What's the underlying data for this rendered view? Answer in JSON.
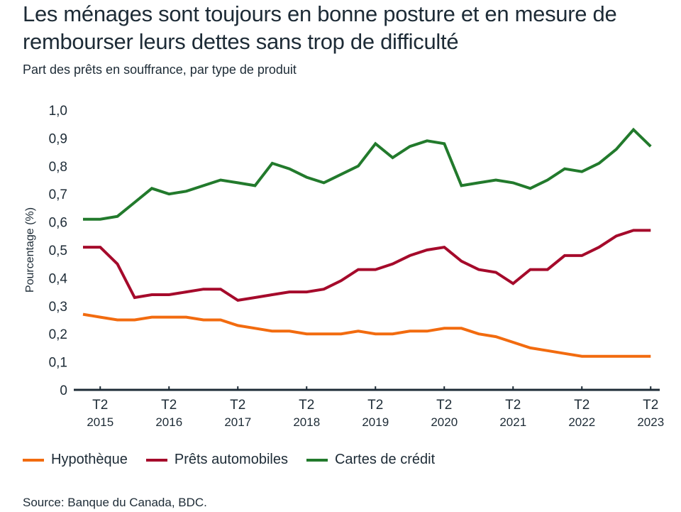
{
  "title": "Les ménages sont toujours en bonne posture et en mesure de rembourser leurs dettes sans trop de difficulté",
  "subtitle": "Part des prêts en souffrance, par type de produit",
  "source": "Source: Banque du Canada, BDC.",
  "chart_data": {
    "type": "line",
    "title": "Les ménages sont toujours en bonne posture et en mesure de rembourser leurs dettes sans trop de difficulté",
    "subtitle": "Part des prêts en souffrance, par type de produit",
    "xlabel": "",
    "ylabel": "Pourcentage (%)",
    "ylim": [
      0,
      1.0
    ],
    "yticks": [
      0,
      0.1,
      0.2,
      0.3,
      0.4,
      0.5,
      0.6,
      0.7,
      0.8,
      0.9,
      1.0
    ],
    "ytick_labels": [
      "0",
      "0,1",
      "0,2",
      "0,3",
      "0,4",
      "0,5",
      "0,6",
      "0,7",
      "0,8",
      "0,9",
      "1,0"
    ],
    "grid": false,
    "legend_position": "bottom-left",
    "x": [
      "T1 2015",
      "T2 2015",
      "T3 2015",
      "T4 2015",
      "T1 2016",
      "T2 2016",
      "T3 2016",
      "T4 2016",
      "T1 2017",
      "T2 2017",
      "T3 2017",
      "T4 2017",
      "T1 2018",
      "T2 2018",
      "T3 2018",
      "T4 2018",
      "T1 2019",
      "T2 2019",
      "T3 2019",
      "T4 2019",
      "T1 2020",
      "T2 2020",
      "T3 2020",
      "T4 2020",
      "T1 2021",
      "T2 2021",
      "T3 2021",
      "T4 2021",
      "T1 2022",
      "T2 2022",
      "T3 2022",
      "T4 2022",
      "T1 2023",
      "T2 2023"
    ],
    "xtick_labels": [
      {
        "at": "T2 2015",
        "quarter": "T2",
        "year": "2015"
      },
      {
        "at": "T2 2016",
        "quarter": "T2",
        "year": "2016"
      },
      {
        "at": "T2 2017",
        "quarter": "T2",
        "year": "2017"
      },
      {
        "at": "T2 2018",
        "quarter": "T2",
        "year": "2018"
      },
      {
        "at": "T2 2019",
        "quarter": "T2",
        "year": "2019"
      },
      {
        "at": "T2 2020",
        "quarter": "T2",
        "year": "2020"
      },
      {
        "at": "T2 2021",
        "quarter": "T2",
        "year": "2021"
      },
      {
        "at": "T2 2022",
        "quarter": "T2",
        "year": "2022"
      },
      {
        "at": "T2 2023",
        "quarter": "T2",
        "year": "2023"
      }
    ],
    "series": [
      {
        "name": "Hypothèque",
        "color": "#f26b0f",
        "values": [
          0.27,
          0.26,
          0.25,
          0.25,
          0.26,
          0.26,
          0.26,
          0.25,
          0.25,
          0.23,
          0.22,
          0.21,
          0.21,
          0.2,
          0.2,
          0.2,
          0.21,
          0.2,
          0.2,
          0.21,
          0.21,
          0.22,
          0.22,
          0.2,
          0.19,
          0.17,
          0.15,
          0.14,
          0.13,
          0.12,
          0.12,
          0.12,
          0.12,
          0.12
        ]
      },
      {
        "name": "Prêts automobiles",
        "color": "#a50a2b",
        "values": [
          0.51,
          0.51,
          0.45,
          0.33,
          0.34,
          0.34,
          0.35,
          0.36,
          0.36,
          0.32,
          0.33,
          0.34,
          0.35,
          0.35,
          0.36,
          0.39,
          0.43,
          0.43,
          0.45,
          0.48,
          0.5,
          0.51,
          0.46,
          0.43,
          0.42,
          0.38,
          0.43,
          0.43,
          0.48,
          0.48,
          0.51,
          0.55,
          0.57,
          0.57
        ]
      },
      {
        "name": "Cartes de crédit",
        "color": "#227a2c",
        "values": [
          0.61,
          0.61,
          0.62,
          0.67,
          0.72,
          0.7,
          0.71,
          0.73,
          0.75,
          0.74,
          0.73,
          0.81,
          0.79,
          0.76,
          0.74,
          0.77,
          0.8,
          0.88,
          0.83,
          0.87,
          0.89,
          0.88,
          0.73,
          0.74,
          0.75,
          0.74,
          0.72,
          0.75,
          0.79,
          0.78,
          0.81,
          0.86,
          0.93,
          0.87
        ]
      }
    ]
  },
  "colors": {
    "text": "#1d2b36",
    "axis": "#1d2b36"
  }
}
